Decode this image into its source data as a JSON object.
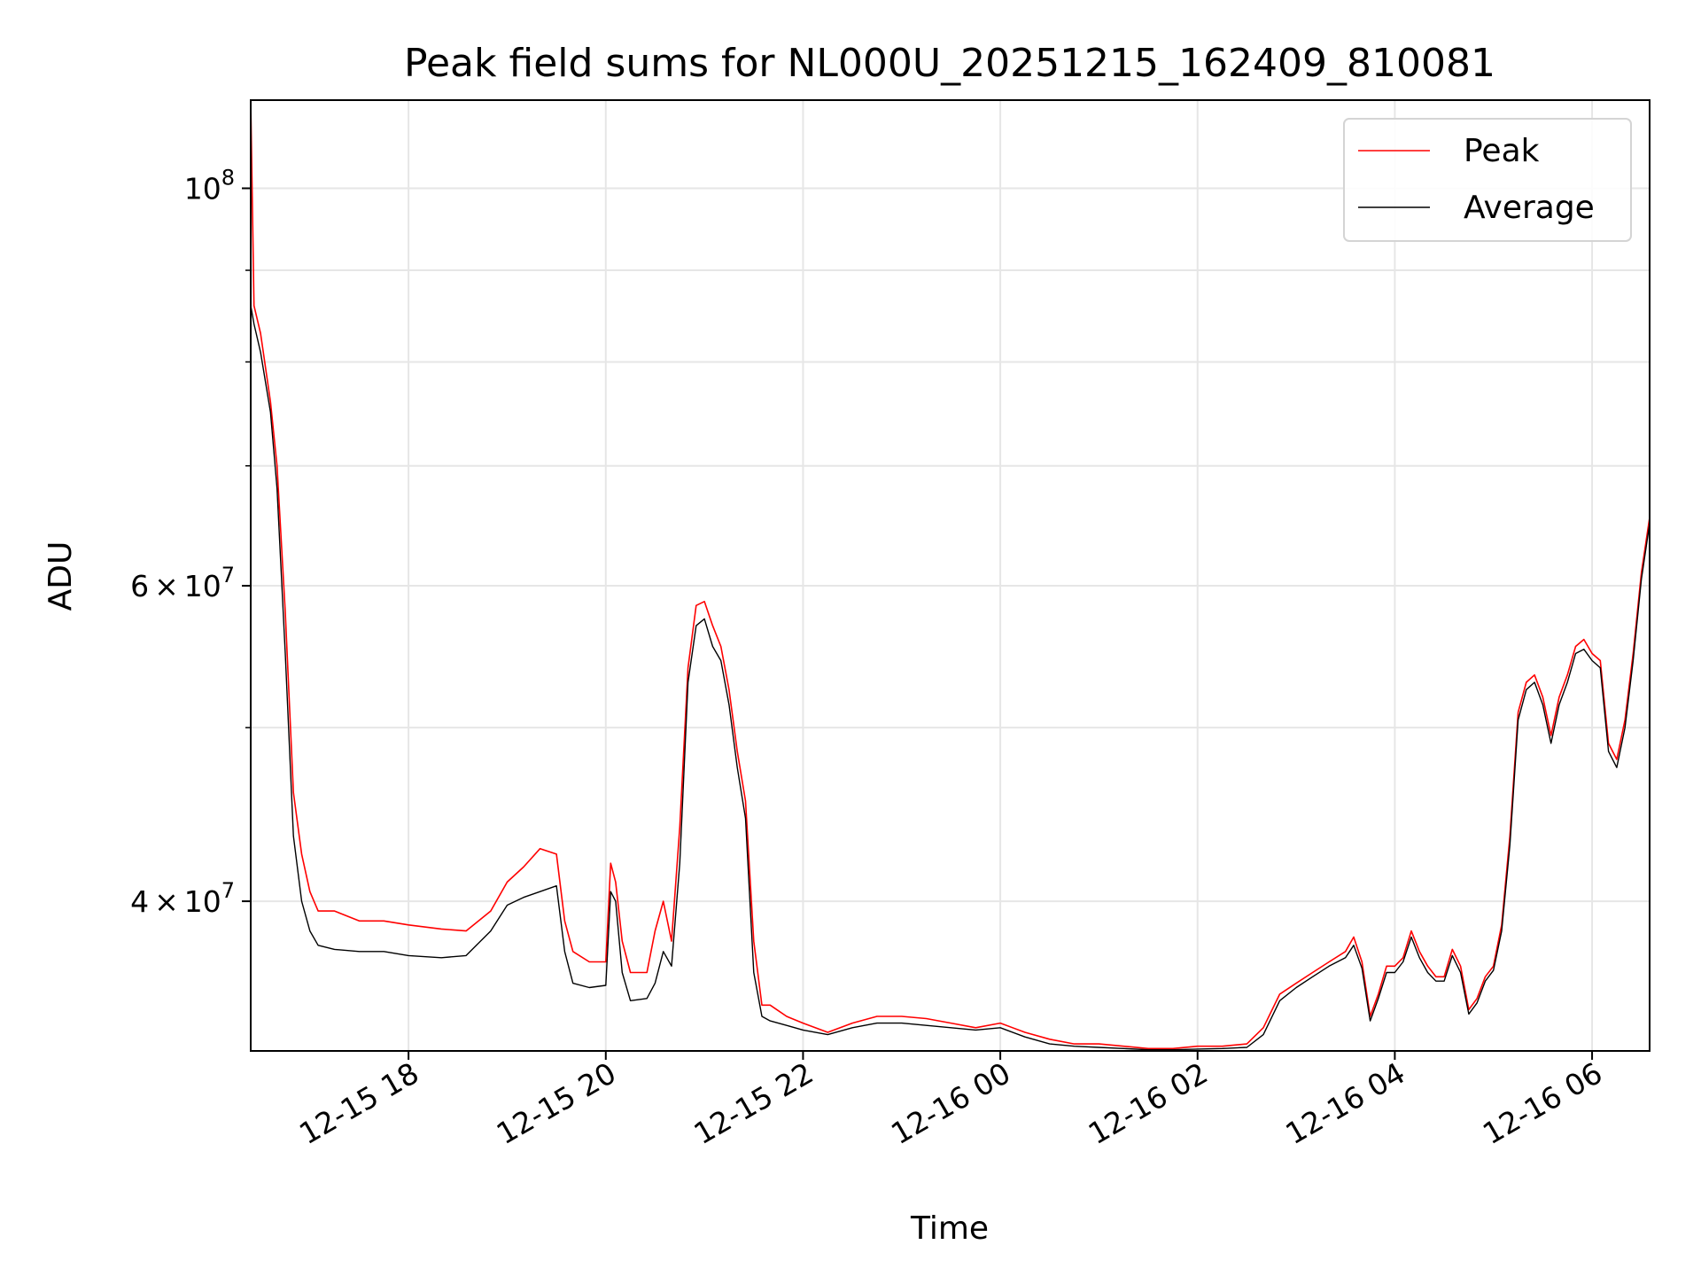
{
  "chart_data": {
    "type": "line",
    "title": "Peak field sums for NL000U_20251215_162409_810081",
    "xlabel": "Time",
    "ylabel": "ADU",
    "y_scale": "log",
    "grid": true,
    "legend_position": "top-right",
    "xlim": [
      "2025-12-15 16:24",
      "2025-12-16 06:35"
    ],
    "ylim": [
      33000000,
      112000000
    ],
    "x_ticks": [
      {
        "value": "2025-12-15 18:00",
        "label": "12-15 18"
      },
      {
        "value": "2025-12-15 20:00",
        "label": "12-15 20"
      },
      {
        "value": "2025-12-15 22:00",
        "label": "12-15 22"
      },
      {
        "value": "2025-12-16 00:00",
        "label": "12-16 00"
      },
      {
        "value": "2025-12-16 02:00",
        "label": "12-16 02"
      },
      {
        "value": "2025-12-16 04:00",
        "label": "12-16 04"
      },
      {
        "value": "2025-12-16 06:00",
        "label": "12-16 06"
      }
    ],
    "y_ticks": [
      {
        "value": 40000000,
        "mantissa": "4",
        "times": "×",
        "base": "10",
        "exponent": "7"
      },
      {
        "value": 60000000,
        "mantissa": "6",
        "times": "×",
        "base": "10",
        "exponent": "7"
      },
      {
        "value": 100000000,
        "mantissa": "",
        "times": "",
        "base": "10",
        "exponent": "8"
      }
    ],
    "y_minor_ticks": [
      50000000,
      70000000,
      80000000,
      90000000
    ],
    "series": [
      {
        "name": "Peak",
        "color": "#ff0000",
        "points": [
          [
            "2025-12-15 16:24",
            112000000
          ],
          [
            "2025-12-15 16:26",
            86000000
          ],
          [
            "2025-12-15 16:30",
            83000000
          ],
          [
            "2025-12-15 16:36",
            76000000
          ],
          [
            "2025-12-15 16:40",
            70000000
          ],
          [
            "2025-12-15 16:45",
            58000000
          ],
          [
            "2025-12-15 16:50",
            46000000
          ],
          [
            "2025-12-15 16:55",
            42500000
          ],
          [
            "2025-12-15 17:00",
            40500000
          ],
          [
            "2025-12-15 17:05",
            39500000
          ],
          [
            "2025-12-15 17:15",
            39500000
          ],
          [
            "2025-12-15 17:30",
            39000000
          ],
          [
            "2025-12-15 17:45",
            39000000
          ],
          [
            "2025-12-15 18:00",
            38800000
          ],
          [
            "2025-12-15 18:20",
            38600000
          ],
          [
            "2025-12-15 18:35",
            38500000
          ],
          [
            "2025-12-15 18:50",
            39500000
          ],
          [
            "2025-12-15 19:00",
            41000000
          ],
          [
            "2025-12-15 19:10",
            41800000
          ],
          [
            "2025-12-15 19:20",
            42800000
          ],
          [
            "2025-12-15 19:30",
            42500000
          ],
          [
            "2025-12-15 19:35",
            39000000
          ],
          [
            "2025-12-15 19:40",
            37500000
          ],
          [
            "2025-12-15 19:50",
            37000000
          ],
          [
            "2025-12-15 20:00",
            37000000
          ],
          [
            "2025-12-15 20:03",
            42000000
          ],
          [
            "2025-12-15 20:06",
            41000000
          ],
          [
            "2025-12-15 20:10",
            38000000
          ],
          [
            "2025-12-15 20:15",
            36500000
          ],
          [
            "2025-12-15 20:25",
            36500000
          ],
          [
            "2025-12-15 20:30",
            38500000
          ],
          [
            "2025-12-15 20:35",
            40000000
          ],
          [
            "2025-12-15 20:40",
            38000000
          ],
          [
            "2025-12-15 20:45",
            44000000
          ],
          [
            "2025-12-15 20:50",
            54000000
          ],
          [
            "2025-12-15 20:55",
            58500000
          ],
          [
            "2025-12-15 21:00",
            58800000
          ],
          [
            "2025-12-15 21:05",
            57000000
          ],
          [
            "2025-12-15 21:10",
            55500000
          ],
          [
            "2025-12-15 21:15",
            52500000
          ],
          [
            "2025-12-15 21:20",
            48500000
          ],
          [
            "2025-12-15 21:25",
            45500000
          ],
          [
            "2025-12-15 21:30",
            38000000
          ],
          [
            "2025-12-15 21:35",
            35000000
          ],
          [
            "2025-12-15 21:40",
            35000000
          ],
          [
            "2025-12-15 21:50",
            34500000
          ],
          [
            "2025-12-15 22:00",
            34200000
          ],
          [
            "2025-12-15 22:15",
            33800000
          ],
          [
            "2025-12-15 22:30",
            34200000
          ],
          [
            "2025-12-15 22:45",
            34500000
          ],
          [
            "2025-12-15 23:00",
            34500000
          ],
          [
            "2025-12-15 23:15",
            34400000
          ],
          [
            "2025-12-15 23:30",
            34200000
          ],
          [
            "2025-12-15 23:45",
            34000000
          ],
          [
            "2025-12-16 00:00",
            34200000
          ],
          [
            "2025-12-16 00:15",
            33800000
          ],
          [
            "2025-12-16 00:30",
            33500000
          ],
          [
            "2025-12-16 00:45",
            33300000
          ],
          [
            "2025-12-16 01:00",
            33300000
          ],
          [
            "2025-12-16 01:15",
            33200000
          ],
          [
            "2025-12-16 01:30",
            33100000
          ],
          [
            "2025-12-16 01:45",
            33100000
          ],
          [
            "2025-12-16 02:00",
            33200000
          ],
          [
            "2025-12-16 02:15",
            33200000
          ],
          [
            "2025-12-16 02:30",
            33300000
          ],
          [
            "2025-12-16 02:40",
            34000000
          ],
          [
            "2025-12-16 02:50",
            35500000
          ],
          [
            "2025-12-16 03:00",
            36000000
          ],
          [
            "2025-12-16 03:10",
            36500000
          ],
          [
            "2025-12-16 03:20",
            37000000
          ],
          [
            "2025-12-16 03:30",
            37500000
          ],
          [
            "2025-12-16 03:35",
            38200000
          ],
          [
            "2025-12-16 03:40",
            37000000
          ],
          [
            "2025-12-16 03:45",
            34500000
          ],
          [
            "2025-12-16 03:50",
            35500000
          ],
          [
            "2025-12-16 03:55",
            36800000
          ],
          [
            "2025-12-16 04:00",
            36800000
          ],
          [
            "2025-12-16 04:05",
            37200000
          ],
          [
            "2025-12-16 04:10",
            38500000
          ],
          [
            "2025-12-16 04:15",
            37500000
          ],
          [
            "2025-12-16 04:20",
            36800000
          ],
          [
            "2025-12-16 04:25",
            36300000
          ],
          [
            "2025-12-16 04:30",
            36300000
          ],
          [
            "2025-12-16 04:35",
            37600000
          ],
          [
            "2025-12-16 04:40",
            36800000
          ],
          [
            "2025-12-16 04:45",
            34800000
          ],
          [
            "2025-12-16 04:50",
            35300000
          ],
          [
            "2025-12-16 04:55",
            36300000
          ],
          [
            "2025-12-16 05:00",
            36800000
          ],
          [
            "2025-12-16 05:05",
            38800000
          ],
          [
            "2025-12-16 05:10",
            43500000
          ],
          [
            "2025-12-16 05:15",
            51000000
          ],
          [
            "2025-12-16 05:20",
            53000000
          ],
          [
            "2025-12-16 05:25",
            53500000
          ],
          [
            "2025-12-16 05:30",
            52000000
          ],
          [
            "2025-12-16 05:35",
            49500000
          ],
          [
            "2025-12-16 05:40",
            52000000
          ],
          [
            "2025-12-16 05:45",
            53500000
          ],
          [
            "2025-12-16 05:50",
            55500000
          ],
          [
            "2025-12-16 05:55",
            56000000
          ],
          [
            "2025-12-16 06:00",
            55000000
          ],
          [
            "2025-12-16 06:05",
            54500000
          ],
          [
            "2025-12-16 06:10",
            49000000
          ],
          [
            "2025-12-16 06:15",
            48000000
          ],
          [
            "2025-12-16 06:20",
            50500000
          ],
          [
            "2025-12-16 06:25",
            55000000
          ],
          [
            "2025-12-16 06:30",
            61000000
          ],
          [
            "2025-12-16 06:35",
            65500000
          ]
        ]
      },
      {
        "name": "Average",
        "color": "#000000",
        "points": [
          [
            "2025-12-15 16:24",
            86000000
          ],
          [
            "2025-12-15 16:26",
            84000000
          ],
          [
            "2025-12-15 16:30",
            81000000
          ],
          [
            "2025-12-15 16:36",
            75000000
          ],
          [
            "2025-12-15 16:40",
            68000000
          ],
          [
            "2025-12-15 16:45",
            55000000
          ],
          [
            "2025-12-15 16:50",
            43500000
          ],
          [
            "2025-12-15 16:55",
            40000000
          ],
          [
            "2025-12-15 17:00",
            38500000
          ],
          [
            "2025-12-15 17:05",
            37800000
          ],
          [
            "2025-12-15 17:15",
            37600000
          ],
          [
            "2025-12-15 17:30",
            37500000
          ],
          [
            "2025-12-15 17:45",
            37500000
          ],
          [
            "2025-12-15 18:00",
            37300000
          ],
          [
            "2025-12-15 18:20",
            37200000
          ],
          [
            "2025-12-15 18:35",
            37300000
          ],
          [
            "2025-12-15 18:50",
            38500000
          ],
          [
            "2025-12-15 19:00",
            39800000
          ],
          [
            "2025-12-15 19:10",
            40200000
          ],
          [
            "2025-12-15 19:20",
            40500000
          ],
          [
            "2025-12-15 19:30",
            40800000
          ],
          [
            "2025-12-15 19:35",
            37500000
          ],
          [
            "2025-12-15 19:40",
            36000000
          ],
          [
            "2025-12-15 19:50",
            35800000
          ],
          [
            "2025-12-15 20:00",
            35900000
          ],
          [
            "2025-12-15 20:03",
            40500000
          ],
          [
            "2025-12-15 20:06",
            40000000
          ],
          [
            "2025-12-15 20:10",
            36500000
          ],
          [
            "2025-12-15 20:15",
            35200000
          ],
          [
            "2025-12-15 20:25",
            35300000
          ],
          [
            "2025-12-15 20:30",
            36000000
          ],
          [
            "2025-12-15 20:35",
            37500000
          ],
          [
            "2025-12-15 20:40",
            36800000
          ],
          [
            "2025-12-15 20:45",
            42000000
          ],
          [
            "2025-12-15 20:50",
            53000000
          ],
          [
            "2025-12-15 20:55",
            57000000
          ],
          [
            "2025-12-15 21:00",
            57500000
          ],
          [
            "2025-12-15 21:05",
            55500000
          ],
          [
            "2025-12-15 21:10",
            54500000
          ],
          [
            "2025-12-15 21:15",
            51500000
          ],
          [
            "2025-12-15 21:20",
            47500000
          ],
          [
            "2025-12-15 21:25",
            44500000
          ],
          [
            "2025-12-15 21:30",
            36500000
          ],
          [
            "2025-12-15 21:35",
            34500000
          ],
          [
            "2025-12-15 21:40",
            34300000
          ],
          [
            "2025-12-15 21:50",
            34100000
          ],
          [
            "2025-12-15 22:00",
            33900000
          ],
          [
            "2025-12-15 22:15",
            33700000
          ],
          [
            "2025-12-15 22:30",
            34000000
          ],
          [
            "2025-12-15 22:45",
            34200000
          ],
          [
            "2025-12-15 23:00",
            34200000
          ],
          [
            "2025-12-15 23:15",
            34100000
          ],
          [
            "2025-12-15 23:30",
            34000000
          ],
          [
            "2025-12-15 23:45",
            33900000
          ],
          [
            "2025-12-16 00:00",
            34000000
          ],
          [
            "2025-12-16 00:15",
            33600000
          ],
          [
            "2025-12-16 00:30",
            33300000
          ],
          [
            "2025-12-16 00:45",
            33200000
          ],
          [
            "2025-12-16 01:00",
            33150000
          ],
          [
            "2025-12-16 01:15",
            33100000
          ],
          [
            "2025-12-16 01:30",
            33050000
          ],
          [
            "2025-12-16 01:45",
            33050000
          ],
          [
            "2025-12-16 02:00",
            33080000
          ],
          [
            "2025-12-16 02:15",
            33100000
          ],
          [
            "2025-12-16 02:30",
            33150000
          ],
          [
            "2025-12-16 02:40",
            33700000
          ],
          [
            "2025-12-16 02:50",
            35200000
          ],
          [
            "2025-12-16 03:00",
            35800000
          ],
          [
            "2025-12-16 03:10",
            36300000
          ],
          [
            "2025-12-16 03:20",
            36800000
          ],
          [
            "2025-12-16 03:30",
            37200000
          ],
          [
            "2025-12-16 03:35",
            37800000
          ],
          [
            "2025-12-16 03:40",
            36700000
          ],
          [
            "2025-12-16 03:45",
            34300000
          ],
          [
            "2025-12-16 03:50",
            35300000
          ],
          [
            "2025-12-16 03:55",
            36500000
          ],
          [
            "2025-12-16 04:00",
            36500000
          ],
          [
            "2025-12-16 04:05",
            37000000
          ],
          [
            "2025-12-16 04:10",
            38200000
          ],
          [
            "2025-12-16 04:15",
            37200000
          ],
          [
            "2025-12-16 04:20",
            36500000
          ],
          [
            "2025-12-16 04:25",
            36100000
          ],
          [
            "2025-12-16 04:30",
            36100000
          ],
          [
            "2025-12-16 04:35",
            37300000
          ],
          [
            "2025-12-16 04:40",
            36500000
          ],
          [
            "2025-12-16 04:45",
            34600000
          ],
          [
            "2025-12-16 04:50",
            35100000
          ],
          [
            "2025-12-16 04:55",
            36100000
          ],
          [
            "2025-12-16 05:00",
            36600000
          ],
          [
            "2025-12-16 05:05",
            38500000
          ],
          [
            "2025-12-16 05:10",
            43000000
          ],
          [
            "2025-12-16 05:15",
            50500000
          ],
          [
            "2025-12-16 05:20",
            52500000
          ],
          [
            "2025-12-16 05:25",
            53000000
          ],
          [
            "2025-12-16 05:30",
            51500000
          ],
          [
            "2025-12-16 05:35",
            49000000
          ],
          [
            "2025-12-16 05:40",
            51500000
          ],
          [
            "2025-12-16 05:45",
            53000000
          ],
          [
            "2025-12-16 05:50",
            55000000
          ],
          [
            "2025-12-16 05:55",
            55300000
          ],
          [
            "2025-12-16 06:00",
            54500000
          ],
          [
            "2025-12-16 06:05",
            54000000
          ],
          [
            "2025-12-16 06:10",
            48500000
          ],
          [
            "2025-12-16 06:15",
            47500000
          ],
          [
            "2025-12-16 06:20",
            50000000
          ],
          [
            "2025-12-16 06:25",
            54500000
          ],
          [
            "2025-12-16 06:30",
            60500000
          ],
          [
            "2025-12-16 06:35",
            65000000
          ]
        ]
      }
    ]
  }
}
